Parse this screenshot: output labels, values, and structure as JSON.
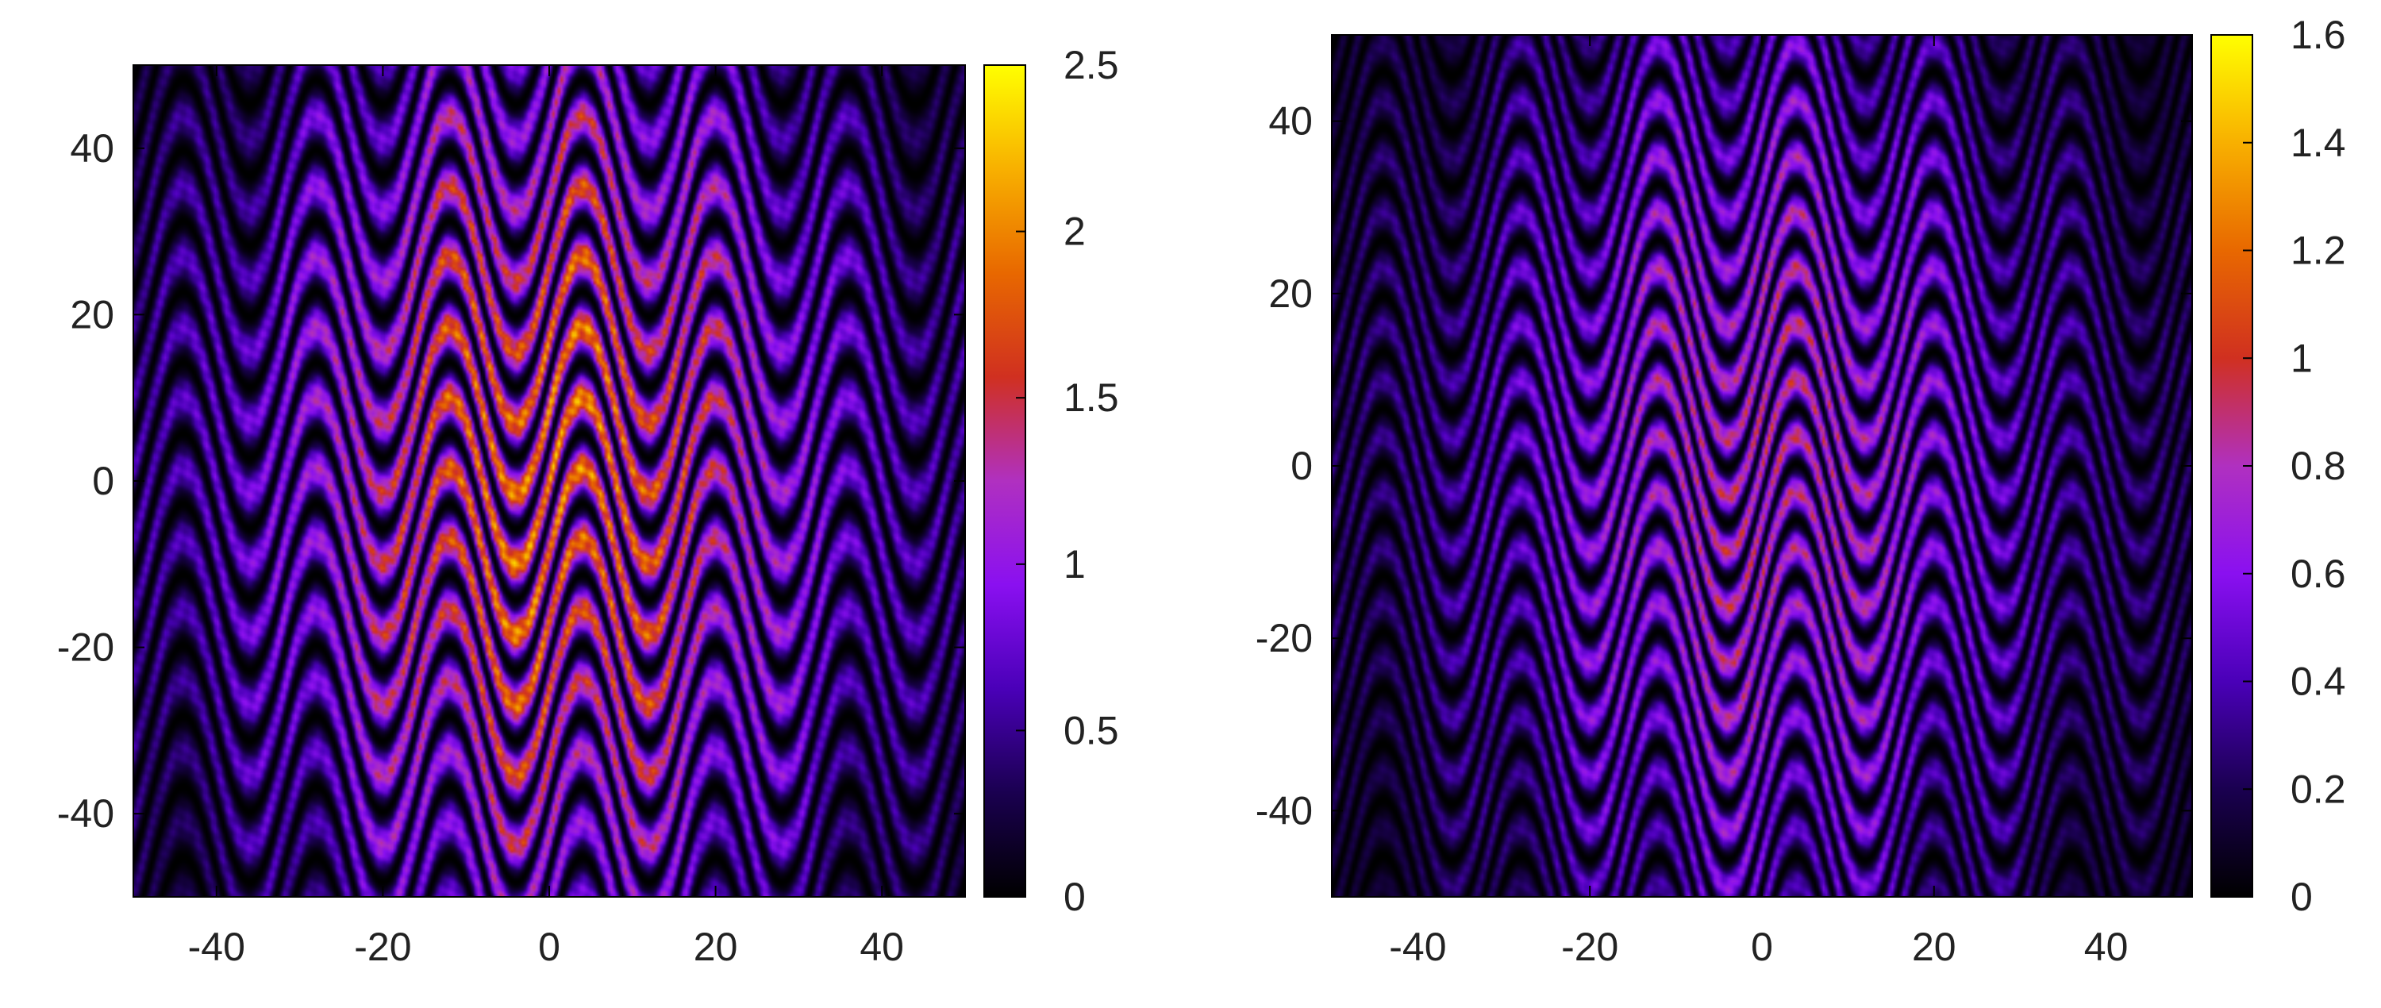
{
  "chart_data": [
    {
      "type": "heatmap",
      "title": "",
      "xlabel": "",
      "ylabel": "",
      "colorbar_label": "",
      "xlim": [
        -50,
        50
      ],
      "ylim": [
        -50,
        50
      ],
      "x_ticks": [
        -40,
        -20,
        0,
        20,
        40
      ],
      "y_ticks": [
        -40,
        -20,
        0,
        20,
        40
      ],
      "x_tick_labels": [
        "-40",
        "-20",
        "0",
        "20",
        "40"
      ],
      "y_tick_labels": [
        "-40",
        "-20",
        "0",
        "20",
        "40"
      ],
      "colorbar_range": [
        0,
        2.5
      ],
      "colorbar_ticks": [
        0,
        0.5,
        1,
        1.5,
        2,
        2.5
      ],
      "colorbar_tick_labels": [
        "0",
        "0.5",
        "1",
        "1.5",
        "2",
        "2.5"
      ],
      "colormap": "gnuplot-hot",
      "pattern": {
        "description_of_structure": "sinusoidal bands",
        "wave_period_x": 16,
        "wave_amplitude_y": 10,
        "band_spacing_y": 8.5,
        "peak_value_near_center": 2.4,
        "envelope_halfwidth_x": 22
      },
      "grid": false,
      "legend": "none"
    },
    {
      "type": "heatmap",
      "title": "",
      "xlabel": "",
      "ylabel": "",
      "colorbar_label": "",
      "xlim": [
        -50,
        50
      ],
      "ylim": [
        -50,
        50
      ],
      "x_ticks": [
        -40,
        -20,
        0,
        20,
        40
      ],
      "y_ticks": [
        -40,
        -20,
        0,
        20,
        40
      ],
      "x_tick_labels": [
        "-40",
        "-20",
        "0",
        "20",
        "40"
      ],
      "y_tick_labels": [
        "-40",
        "-20",
        "0",
        "20",
        "40"
      ],
      "colorbar_range": [
        0,
        1.6
      ],
      "colorbar_ticks": [
        0,
        0.2,
        0.4,
        0.6,
        0.8,
        1,
        1.2,
        1.4,
        1.6
      ],
      "colorbar_tick_labels": [
        "0",
        "0.2",
        "0.4",
        "0.6",
        "0.8",
        "1",
        "1.2",
        "1.4",
        "1.6"
      ],
      "colormap": "gnuplot-hot",
      "pattern": {
        "description_of_structure": "sinusoidal bands",
        "wave_period_x": 16,
        "wave_amplitude_y": 10,
        "band_spacing_y": 6.5,
        "peak_value_near_center": 1.1,
        "envelope_halfwidth_x": 22
      },
      "grid": false,
      "legend": "none"
    }
  ]
}
